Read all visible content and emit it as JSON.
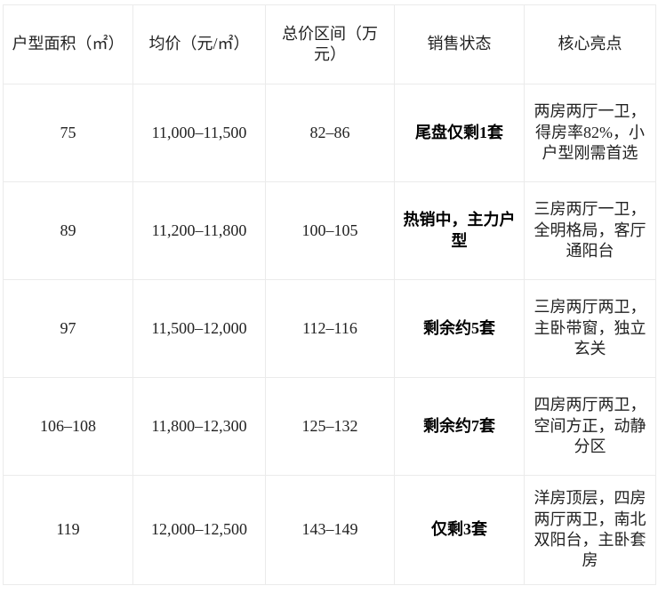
{
  "table": {
    "headers": {
      "area": "户型面积（㎡）",
      "avg_price": "均价（元/㎡）",
      "total_price": "总价区间（万元）",
      "status": "销售状态",
      "highlight": "核心亮点"
    },
    "rows": [
      {
        "area": "75",
        "avg_price": "11,000–11,500",
        "total_price": "82–86",
        "status": "尾盘仅剩1套",
        "highlight": "两房两厅一卫，得房率82%，小户型刚需首选"
      },
      {
        "area": "89",
        "avg_price": "11,200–11,800",
        "total_price": "100–105",
        "status": "热销中，主力户型",
        "highlight": "三房两厅一卫，全明格局，客厅通阳台"
      },
      {
        "area": "97",
        "avg_price": "11,500–12,000",
        "total_price": "112–116",
        "status": "剩余约5套",
        "highlight": "三房两厅两卫，主卧带窗，独立玄关"
      },
      {
        "area": "106–108",
        "avg_price": "11,800–12,300",
        "total_price": "125–132",
        "status": "剩余约7套",
        "highlight": "四房两厅两卫，空间方正，动静分区"
      },
      {
        "area": "119",
        "avg_price": "12,000–12,500",
        "total_price": "143–149",
        "status": "仅剩3套",
        "highlight": "洋房顶层，四房两厅两卫，南北双阳台，主卧套房"
      }
    ],
    "colors": {
      "border": "#ebebeb",
      "text": "#222222",
      "status_text": "#000000",
      "background": "#ffffff"
    }
  }
}
